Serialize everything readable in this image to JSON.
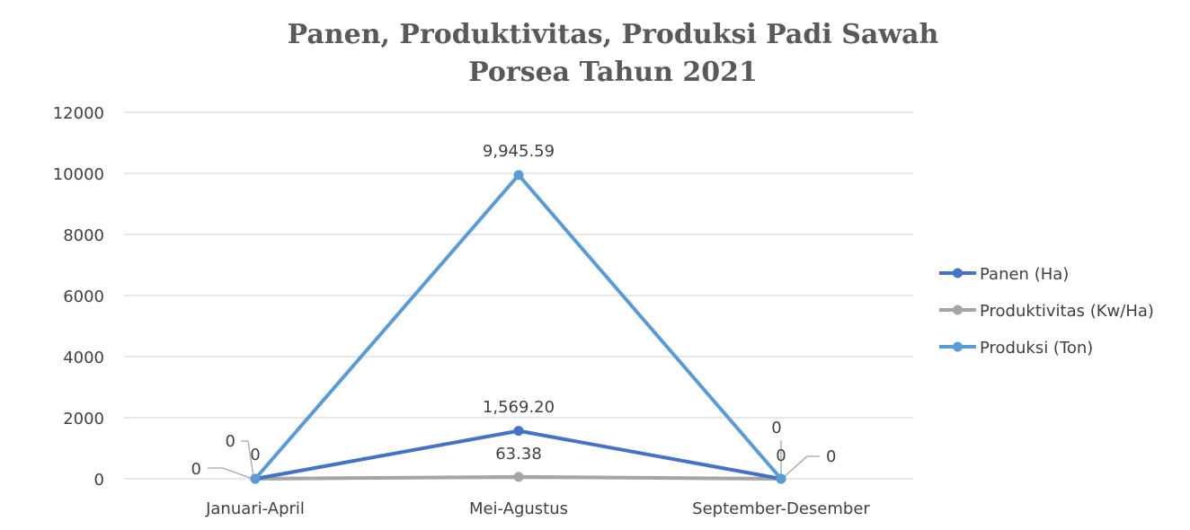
{
  "chart_data": {
    "type": "line",
    "title": [
      "Panen, Produktivitas, Produksi Padi Sawah",
      "Porsea Tahun 2021"
    ],
    "xlabel": "",
    "ylabel": "",
    "categories": [
      "Januari-April",
      "Mei-Agustus",
      "September-Desember"
    ],
    "ylim": [
      0,
      12000
    ],
    "yticks": [
      "0",
      "2000",
      "4000",
      "6000",
      "8000",
      "10000",
      "12000"
    ],
    "grid": true,
    "legend_position": "right",
    "series": [
      {
        "name": "Panen (Ha)",
        "color": "#4472C4",
        "values": [
          0,
          1569.2,
          0
        ],
        "labels": [
          "0",
          "1,569.20",
          "0"
        ]
      },
      {
        "name": "Produktivitas (Kw/Ha)",
        "color": "#A5A5A5",
        "values": [
          0,
          63.38,
          0
        ],
        "labels": [
          "0",
          "63.38",
          "0"
        ]
      },
      {
        "name": "Produksi (Ton)",
        "color": "#5B9BD5",
        "values": [
          0,
          9945.59,
          0
        ],
        "labels": [
          "0",
          "9,945.59",
          "0"
        ]
      }
    ]
  }
}
